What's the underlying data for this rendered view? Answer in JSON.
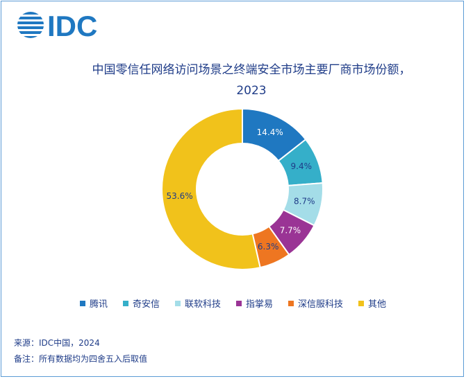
{
  "logo_text": "IDC",
  "chart_data": {
    "type": "pie",
    "title": "中国零信任网络访问场景之终端安全市场主要厂商市场份额，",
    "title_line2": "2023",
    "unit": "%",
    "categories": [
      "腾讯",
      "奇安信",
      "联软科技",
      "指掌易",
      "深信服科技",
      "其他"
    ],
    "values": [
      14.4,
      9.4,
      8.7,
      7.7,
      6.3,
      53.6
    ],
    "labels": [
      "14.4%",
      "9.4%",
      "8.7%",
      "7.7%",
      "6.3%",
      "53.6%"
    ],
    "colors": [
      "#1f78c1",
      "#35afc9",
      "#a4dde8",
      "#9a3495",
      "#ee7621",
      "#f1c21b"
    ],
    "label_colors": [
      "#ffffff",
      "#1f3c88",
      "#1f3c88",
      "#ffffff",
      "#1f3c88",
      "#1f3c88"
    ],
    "legend_position": "bottom"
  },
  "footer": {
    "source": "来源：IDC中国，2024",
    "note": "备注：所有数据均为四舍五入后取值"
  }
}
